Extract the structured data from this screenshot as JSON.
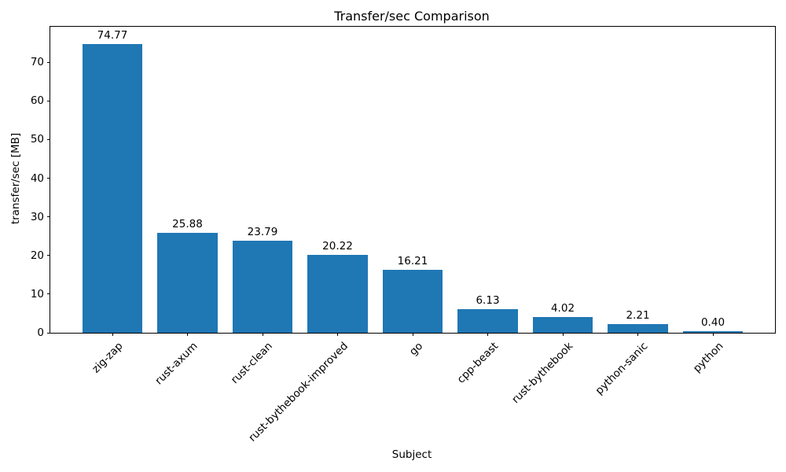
{
  "chart_data": {
    "type": "bar",
    "title": "Transfer/sec Comparison",
    "xlabel": "Subject",
    "ylabel": "transfer/sec [MB]",
    "categories": [
      "zig-zap",
      "rust-axum",
      "rust-clean",
      "rust-bythebook-improved",
      "go",
      "cpp-beast",
      "rust-bythebook",
      "python-sanic",
      "python"
    ],
    "values": [
      74.77,
      25.88,
      23.79,
      20.22,
      16.21,
      6.13,
      4.02,
      2.21,
      0.4
    ],
    "bar_labels": [
      "74.77",
      "25.88",
      "23.79",
      "20.22",
      "16.21",
      "6.13",
      "4.02",
      "2.21",
      "0.40"
    ],
    "yticks": [
      0,
      10,
      20,
      30,
      40,
      50,
      60,
      70
    ],
    "ylim": [
      0,
      79.2
    ],
    "bar_color": "#1f77b4",
    "grid": false,
    "legend_position": "none",
    "x_tick_rotation_deg": 45
  }
}
